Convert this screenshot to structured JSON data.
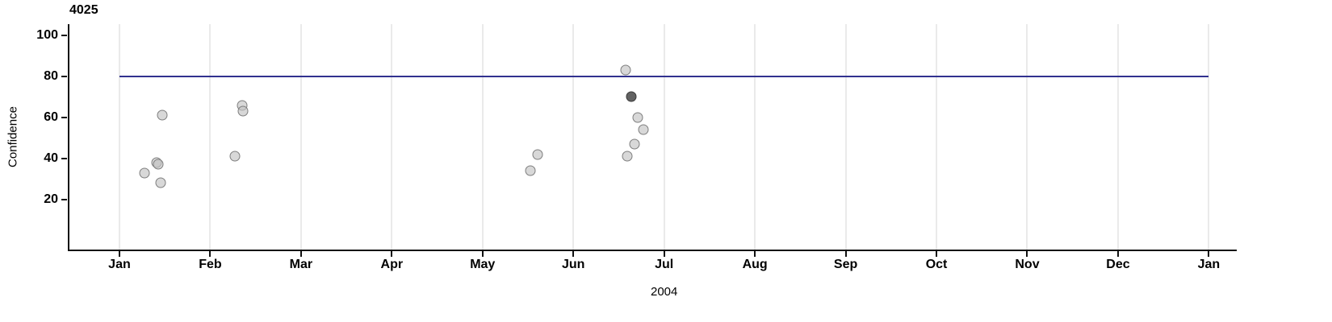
{
  "chart_data": {
    "type": "scatter",
    "title": "4025",
    "xlabel": "2004",
    "ylabel": "Confidence",
    "legend": "none",
    "grid": "vertical-month-gridlines",
    "axis": {
      "x_min_month": -0.56,
      "x_max_month": 12.29,
      "y_min": -4.5,
      "y_max": 105.5,
      "x_tick_months": [
        0,
        1,
        2,
        3,
        4,
        5,
        6,
        7,
        8,
        9,
        10,
        11,
        12
      ],
      "x_tick_labels": [
        "Jan",
        "Feb",
        "Mar",
        "Apr",
        "May",
        "Jun",
        "Jul",
        "Aug",
        "Sep",
        "Oct",
        "Nov",
        "Dec",
        "Jan"
      ],
      "y_ticks": [
        20,
        40,
        60,
        80,
        100
      ]
    },
    "reference_line": {
      "y": 80,
      "x_start_month": 0,
      "x_end_month": 12
    },
    "points": [
      {
        "month": 0.28,
        "value": 33
      },
      {
        "month": 0.41,
        "value": 38
      },
      {
        "month": 0.43,
        "value": 37
      },
      {
        "month": 0.47,
        "value": 61
      },
      {
        "month": 0.45,
        "value": 28
      },
      {
        "month": 1.27,
        "value": 41
      },
      {
        "month": 1.35,
        "value": 66
      },
      {
        "month": 1.36,
        "value": 63
      },
      {
        "month": 4.53,
        "value": 34
      },
      {
        "month": 4.61,
        "value": 42
      },
      {
        "month": 5.58,
        "value": 83
      },
      {
        "month": 5.64,
        "value": 70,
        "emphasis": "dark"
      },
      {
        "month": 5.71,
        "value": 60
      },
      {
        "month": 5.77,
        "value": 54
      },
      {
        "month": 5.67,
        "value": 47
      },
      {
        "month": 5.59,
        "value": 41
      }
    ],
    "style": {
      "point_fill": "rgba(195,195,195,0.65)",
      "point_stroke": "#7e7e7e",
      "dark_point_fill": "rgba(70,70,70,0.85)",
      "dark_point_stroke": "#3a3a3a",
      "gridline_color": "#d6d6d6",
      "axis_color": "#111111",
      "reference_line_color": "#31318f"
    }
  }
}
